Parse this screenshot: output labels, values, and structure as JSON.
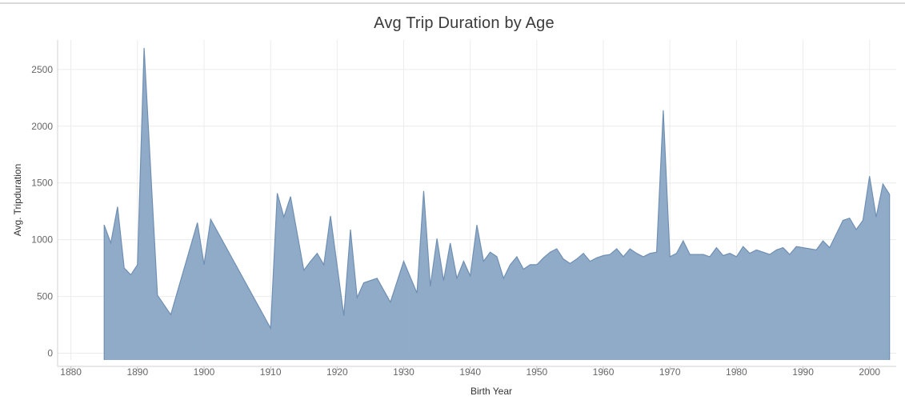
{
  "chart_data": {
    "type": "area",
    "title": "Avg Trip Duration by Age",
    "xlabel": "Birth Year",
    "ylabel": "Avg. Tripduration",
    "xlim": [
      1878,
      2004
    ],
    "ylim": [
      -60,
      2760
    ],
    "x_ticks": [
      1880,
      1890,
      1900,
      1910,
      1920,
      1930,
      1940,
      1950,
      1960,
      1970,
      1980,
      1990,
      2000
    ],
    "y_ticks": [
      0,
      500,
      1000,
      1500,
      2000,
      2500
    ],
    "grid": true,
    "fill_color": "#8aa6c5",
    "line_color": "#6f8fb3",
    "x": [
      1885,
      1886,
      1887,
      1888,
      1889,
      1890,
      1891,
      1892,
      1893,
      1895,
      1899,
      1900,
      1901,
      1910,
      1911,
      1912,
      1913,
      1915,
      1916,
      1917,
      1918,
      1919,
      1921,
      1922,
      1923,
      1924,
      1926,
      1928,
      1930,
      1932,
      1933,
      1934,
      1935,
      1936,
      1937,
      1938,
      1939,
      1940,
      1941,
      1942,
      1943,
      1944,
      1945,
      1946,
      1947,
      1948,
      1949,
      1950,
      1951,
      1952,
      1953,
      1954,
      1955,
      1956,
      1957,
      1958,
      1959,
      1960,
      1961,
      1962,
      1963,
      1964,
      1965,
      1966,
      1967,
      1968,
      1969,
      1970,
      1971,
      1972,
      1973,
      1974,
      1975,
      1976,
      1977,
      1978,
      1979,
      1980,
      1981,
      1982,
      1983,
      1984,
      1985,
      1986,
      1987,
      1988,
      1989,
      1990,
      1991,
      1992,
      1993,
      1994,
      1995,
      1996,
      1997,
      1998,
      1999,
      2000,
      2001,
      2002,
      2003
    ],
    "values": [
      1130,
      970,
      1290,
      750,
      690,
      780,
      2690,
      1600,
      510,
      340,
      1150,
      780,
      1180,
      220,
      1410,
      1200,
      1380,
      730,
      810,
      880,
      780,
      1210,
      330,
      1090,
      490,
      620,
      660,
      450,
      810,
      530,
      1430,
      590,
      1010,
      640,
      970,
      660,
      810,
      680,
      1130,
      810,
      890,
      850,
      660,
      780,
      850,
      740,
      780,
      780,
      840,
      890,
      920,
      830,
      790,
      830,
      880,
      810,
      840,
      860,
      870,
      920,
      850,
      920,
      880,
      850,
      880,
      890,
      2140,
      850,
      880,
      990,
      870,
      870,
      870,
      850,
      930,
      860,
      880,
      850,
      940,
      880,
      910,
      890,
      870,
      910,
      930,
      870,
      940,
      930,
      920,
      910,
      990,
      930,
      1050,
      1170,
      1190,
      1090,
      1170,
      1560,
      1200,
      1490,
      1400
    ]
  }
}
